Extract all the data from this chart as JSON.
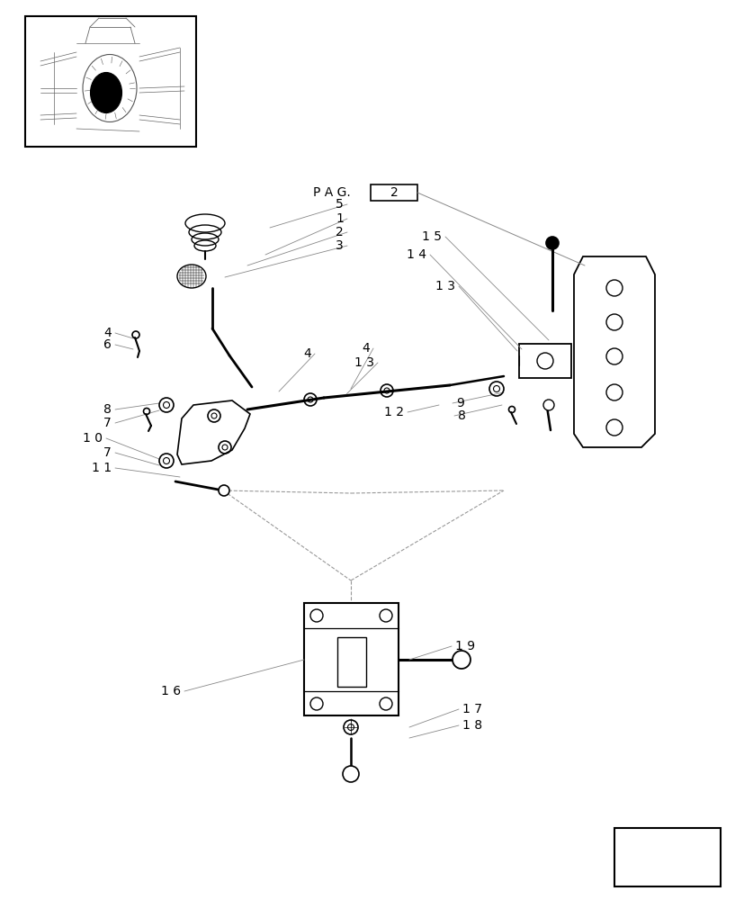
{
  "bg_color": "#ffffff",
  "line_color": "#000000",
  "thin_line_color": "#888888",
  "dashed_line_color": "#999999",
  "fig_width": 8.28,
  "fig_height": 10.0
}
